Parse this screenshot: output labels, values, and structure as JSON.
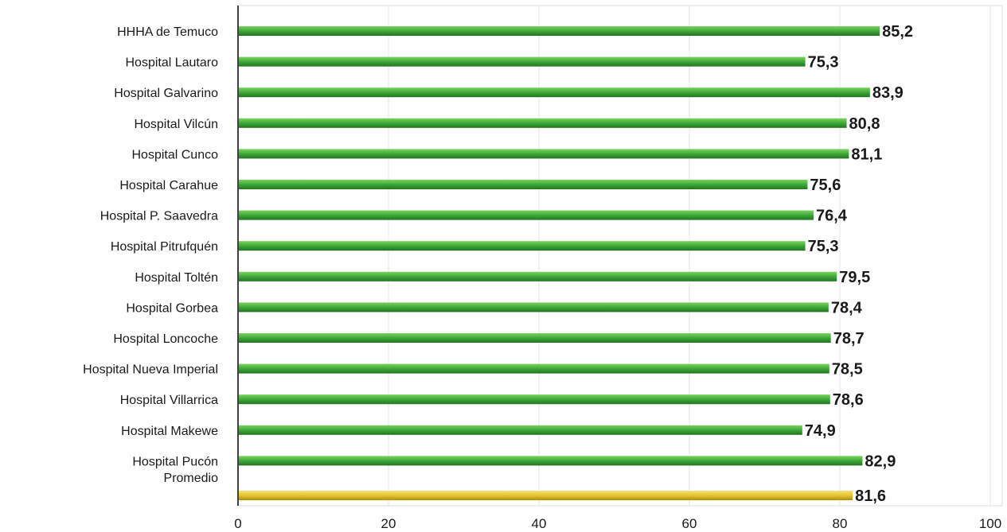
{
  "chart_data": {
    "type": "bar",
    "orientation": "horizontal",
    "categories": [
      "HHHA de Temuco",
      "Hospital Lautaro",
      "Hospital Galvarino",
      "Hospital Vilcún",
      "Hospital Cunco",
      "Hospital Carahue",
      "Hospital P. Saavedra",
      "Hospital Pitrufquén",
      "Hospital Toltén",
      "Hospital Gorbea",
      "Hospital Loncoche",
      "Hospital Nueva Imperial",
      "Hospital Villarrica",
      "Hospital Makewe",
      "Hospital Pucón",
      "Promedio"
    ],
    "values": [
      85.2,
      75.3,
      83.9,
      80.8,
      81.1,
      75.6,
      76.4,
      75.3,
      79.5,
      78.4,
      78.7,
      78.5,
      78.6,
      74.9,
      82.9,
      81.6
    ],
    "value_labels": [
      "85,2",
      "75,3",
      "83,9",
      "80,8",
      "81,1",
      "75,6",
      "76,4",
      "75,3",
      "79,5",
      "78,4",
      "78,7",
      "78,5",
      "78,6",
      "74,9",
      "82,9",
      "81,6"
    ],
    "xlim": [
      0,
      100
    ],
    "xticks": [
      0,
      20,
      40,
      60,
      80,
      100
    ],
    "xtick_labels": [
      "0",
      "20",
      "40",
      "60",
      "80",
      "100"
    ],
    "grid": true,
    "title": "",
    "xlabel": "",
    "ylabel": "",
    "colors": {
      "bar": "#3aa336",
      "bar_highlight": "#79d45e",
      "bar_shadow": "#23751f",
      "average_bar": "#e2c12a",
      "average_highlight": "#f6e07a",
      "average_shadow": "#b08f10",
      "average_category": "Promedio"
    }
  }
}
